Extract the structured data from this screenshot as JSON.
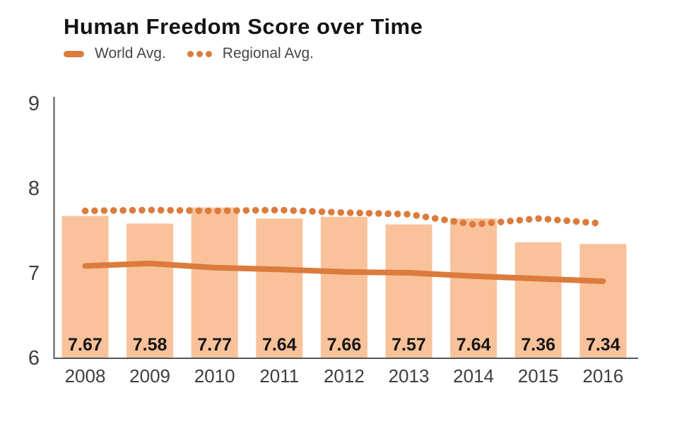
{
  "chart_data": {
    "type": "bar",
    "title": "Human Freedom Score over Time",
    "categories": [
      "2008",
      "2009",
      "2010",
      "2011",
      "2012",
      "2013",
      "2014",
      "2015",
      "2016"
    ],
    "bar_series": {
      "name": "Human Freedom Score",
      "values": [
        7.67,
        7.58,
        7.77,
        7.64,
        7.66,
        7.57,
        7.64,
        7.36,
        7.34
      ]
    },
    "series": [
      {
        "name": "World Avg.",
        "type": "line",
        "style": "solid",
        "values": [
          7.08,
          7.11,
          7.06,
          7.04,
          7.01,
          7.0,
          6.96,
          6.93,
          6.9
        ]
      },
      {
        "name": "Regional Avg.",
        "type": "line",
        "style": "dotted",
        "values": [
          7.73,
          7.74,
          7.73,
          7.74,
          7.71,
          7.69,
          7.57,
          7.64,
          7.58
        ]
      }
    ],
    "xlabel": "",
    "ylabel": "",
    "ylim": [
      6,
      9
    ],
    "yticks": [
      9,
      8,
      7,
      6
    ],
    "grid": false,
    "legend_position": "top-left",
    "bar_value_labels_shown": true,
    "colors": {
      "bar": "#F9C29B",
      "line": "#DB7B3C",
      "axis": "#55565A",
      "title": "#141414",
      "legend_text": "#474747",
      "tick_label": "#3E3E3E",
      "bar_label": "#161616",
      "background": "#FFFFFF"
    }
  }
}
